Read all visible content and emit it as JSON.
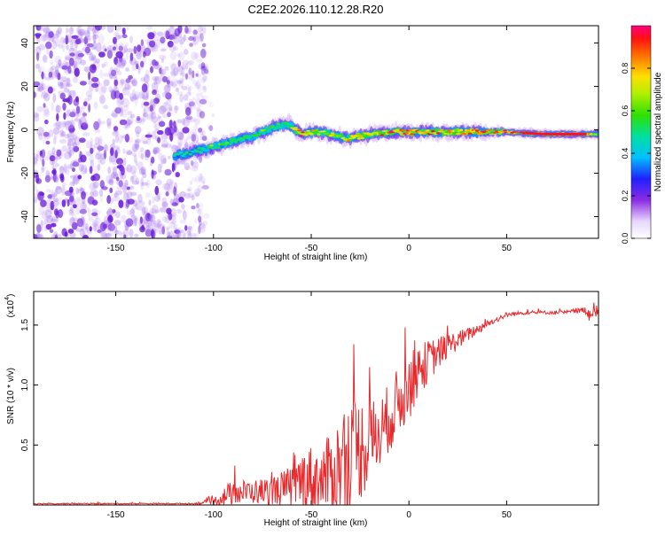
{
  "title": "C2E2.2026.110.12.28.R20",
  "colors": {
    "background": "#ffffff",
    "axis": "#000000",
    "snr_line": "#e8282b",
    "noise": "#7b2fe0"
  },
  "chart_data": [
    {
      "type": "heatmap",
      "name": "spectrogram",
      "xlabel": "Height of straight line (km)",
      "ylabel": "Frequency (Hz)",
      "xlim": [
        -192,
        97
      ],
      "ylim": [
        -50,
        48
      ],
      "xticks": [
        -150,
        -100,
        -50,
        0,
        50
      ],
      "yticks": [
        -40,
        -20,
        0,
        20,
        40
      ],
      "colorbar": {
        "label": "Normalized spectral amplitude",
        "range": [
          0,
          1
        ],
        "ticks": [
          "0.0",
          "0.2",
          "0.4",
          "0.6",
          "0.8"
        ],
        "tick_values": [
          0.0,
          0.2,
          0.4,
          0.6,
          0.8
        ]
      },
      "noise_region": {
        "x_from": -192,
        "x_to": -104,
        "freq_from": -50,
        "freq_to": 48
      },
      "ridge": {
        "x": [
          -120,
          -110,
          -100,
          -90,
          -80,
          -70,
          -62,
          -55,
          -48,
          -40,
          -32,
          -25,
          -18,
          -10,
          -2,
          5,
          15,
          30,
          50,
          70,
          90,
          97
        ],
        "freq": [
          -12,
          -10,
          -8,
          -5,
          -3,
          1,
          3,
          -2,
          -1,
          -2,
          -4,
          -3,
          -2,
          -1,
          -1,
          -1,
          -1,
          -1,
          -1,
          -2,
          -2,
          -2
        ],
        "amplitude": [
          0.45,
          0.5,
          0.55,
          0.55,
          0.55,
          0.6,
          0.55,
          0.9,
          0.7,
          0.65,
          0.7,
          0.8,
          0.75,
          0.8,
          0.9,
          0.8,
          0.8,
          0.85,
          0.9,
          1.0,
          1.0,
          0.6
        ]
      }
    },
    {
      "type": "line",
      "name": "snr",
      "xlabel": "Height of straight line (km)",
      "ylabel": "SNR (10 * v/v)",
      "y_multiplier": "(x10",
      "y_multiplier_exp": "4",
      "y_multiplier_close": ")",
      "xlim": [
        -192,
        97
      ],
      "ylim": [
        0,
        1.78
      ],
      "xticks": [
        -150,
        -100,
        -50,
        0,
        50
      ],
      "yticks": [
        0.5,
        1.0,
        1.5
      ],
      "ytick_labels": [
        "0.5",
        "1.0",
        "1.5"
      ],
      "series": [
        {
          "name": "SNR",
          "envelope_x": [
            -192,
            -110,
            -100,
            -92,
            -85,
            -80,
            -70,
            -60,
            -52,
            -45,
            -38,
            -30,
            -22,
            -15,
            -8,
            0,
            5,
            10,
            20,
            30,
            40,
            50,
            60,
            70,
            80,
            90,
            94,
            96,
            97
          ],
          "envelope_base": [
            0.01,
            0.01,
            0.02,
            0.06,
            0.08,
            0.08,
            0.08,
            0.1,
            0.15,
            0.12,
            0.18,
            0.28,
            0.38,
            0.5,
            0.7,
            0.9,
            1.05,
            1.15,
            1.3,
            1.4,
            1.5,
            1.58,
            1.6,
            1.6,
            1.6,
            1.62,
            1.55,
            1.62,
            1.6
          ],
          "envelope_spread": [
            0.01,
            0.01,
            0.06,
            0.2,
            0.2,
            0.2,
            0.25,
            0.35,
            0.55,
            0.55,
            0.75,
            1.0,
            0.8,
            0.6,
            0.6,
            0.55,
            0.45,
            0.35,
            0.2,
            0.12,
            0.06,
            0.04,
            0.03,
            0.03,
            0.03,
            0.05,
            0.2,
            0.1,
            0.04
          ]
        }
      ]
    }
  ]
}
